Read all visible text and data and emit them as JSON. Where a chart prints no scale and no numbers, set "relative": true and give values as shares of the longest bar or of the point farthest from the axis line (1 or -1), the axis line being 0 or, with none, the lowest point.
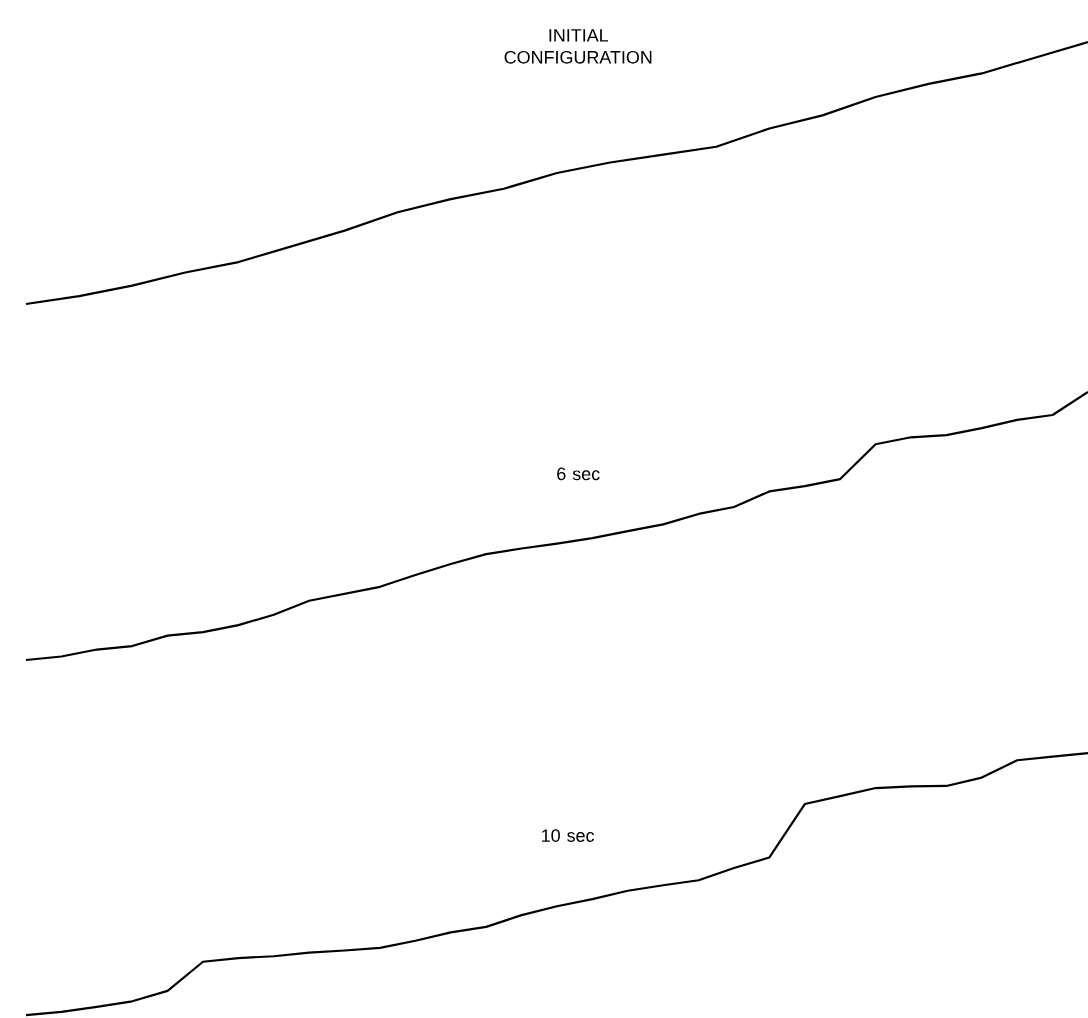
{
  "chart_data": [
    {
      "type": "line",
      "title": "INITIAL CONFIGURATION",
      "relative": true,
      "categories": [
        null,
        null,
        null,
        null,
        null,
        null,
        null,
        null,
        null,
        null,
        null,
        null,
        null,
        null,
        null,
        null,
        null,
        null,
        null,
        null,
        null
      ],
      "series": [
        {
          "color": "#000000",
          "values": [
            0,
            0.03,
            0.07,
            0.12,
            0.16,
            0.22,
            0.28,
            0.35,
            0.4,
            0.44,
            0.5,
            0.54,
            0.57,
            0.6,
            0.67,
            0.72,
            0.79,
            0.84,
            0.88,
            0.94,
            1.0
          ]
        }
      ]
    },
    {
      "type": "line",
      "title": "6 sec",
      "relative": true,
      "categories": [
        null,
        null,
        null,
        null,
        null,
        null,
        null,
        null,
        null,
        null,
        null,
        null,
        null,
        null,
        null,
        null,
        null,
        null,
        null,
        null,
        null,
        null,
        null,
        null,
        null,
        null,
        null,
        null,
        null,
        null,
        null
      ],
      "series": [
        {
          "color": "#000000",
          "values": [
            0,
            0.013,
            0.039,
            0.052,
            0.091,
            0.104,
            0.13,
            0.169,
            0.221,
            0.247,
            0.273,
            0.317,
            0.358,
            0.395,
            0.416,
            0.434,
            0.455,
            0.481,
            0.506,
            0.545,
            0.571,
            0.629,
            0.649,
            0.675,
            0.805,
            0.831,
            0.839,
            0.865,
            0.896,
            0.914,
            1.0
          ]
        }
      ]
    },
    {
      "type": "line",
      "title": "10 sec",
      "relative": true,
      "categories": [
        null,
        null,
        null,
        null,
        null,
        null,
        null,
        null,
        null,
        null,
        null,
        null,
        null,
        null,
        null,
        null,
        null,
        null,
        null,
        null,
        null,
        null,
        null,
        null,
        null,
        null,
        null,
        null,
        null,
        null,
        null
      ],
      "series": [
        {
          "color": "#000000",
          "values": [
            0,
            0.013,
            0.032,
            0.053,
            0.093,
            0.204,
            0.218,
            0.225,
            0.239,
            0.247,
            0.257,
            0.284,
            0.316,
            0.337,
            0.382,
            0.416,
            0.443,
            0.475,
            0.496,
            0.515,
            0.562,
            0.602,
            0.806,
            0.836,
            0.867,
            0.873,
            0.875,
            0.907,
            0.973,
            0.987,
            1.0
          ]
        }
      ]
    }
  ]
}
